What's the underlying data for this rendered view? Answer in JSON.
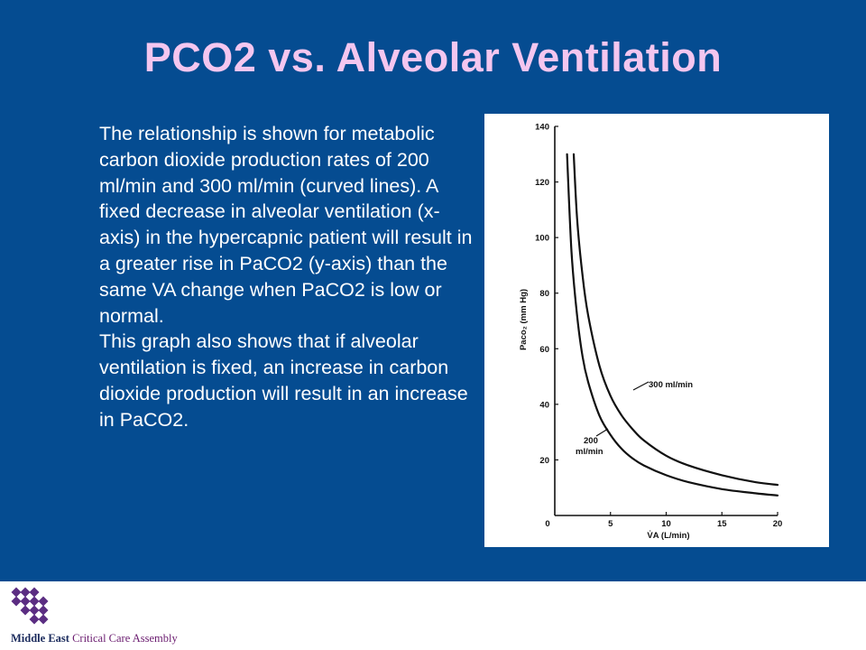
{
  "slide": {
    "title": "PCO2 vs. Alveolar Ventilation",
    "body_paragraphs": [
      "The relationship is shown for metabolic carbon dioxide production rates of 200 ml/min and 300 ml/min (curved lines).  A fixed decrease in alveolar ventilation (x-axis) in the hypercapnic patient will result in a greater rise in PaCO2 (y-axis) than the same VA change when PaCO2 is low or normal.",
      "This graph also shows that if alveolar ventilation is fixed, an increase in carbon dioxide production will result in an increase in PaCO2."
    ],
    "colors": {
      "background": "#054c91",
      "title": "#f4c6ef",
      "text": "#ffffff"
    }
  },
  "chart_data": {
    "type": "line",
    "xlabel": "V̇A (L/min)",
    "ylabel": "Paco₂ (mm Hg)",
    "xlim": [
      0,
      20
    ],
    "ylim": [
      0,
      140
    ],
    "xticks": [
      0,
      5,
      10,
      15,
      20
    ],
    "yticks": [
      20,
      40,
      60,
      80,
      100,
      120,
      140
    ],
    "grid": false,
    "series": [
      {
        "name": "300 ml/min",
        "x": [
          1.7,
          2,
          2.5,
          3,
          4,
          5,
          6,
          7,
          8,
          10,
          12,
          15,
          18,
          20
        ],
        "y": [
          130,
          107,
          86,
          72,
          54,
          43,
          36,
          31,
          27,
          21.5,
          18,
          14.5,
          12,
          11
        ]
      },
      {
        "name": "200 ml/min",
        "x": [
          1.1,
          1.5,
          2,
          2.5,
          3,
          4,
          5,
          6,
          7,
          8,
          10,
          12,
          15,
          18,
          20
        ],
        "y": [
          130,
          95,
          72,
          57,
          48,
          36,
          29,
          24,
          20.5,
          18,
          14.5,
          12,
          9.5,
          8,
          7.2
        ]
      }
    ],
    "annotations": [
      {
        "text": "300 ml/min",
        "series": "300 ml/min"
      },
      {
        "text": "200",
        "series": "200 ml/min"
      },
      {
        "text": "ml/min",
        "series": "200 ml/min"
      }
    ]
  },
  "footer": {
    "org_part1": "Middle East",
    "org_part2": " Critical Care Assembly",
    "logo_color": "#5b2d82"
  }
}
